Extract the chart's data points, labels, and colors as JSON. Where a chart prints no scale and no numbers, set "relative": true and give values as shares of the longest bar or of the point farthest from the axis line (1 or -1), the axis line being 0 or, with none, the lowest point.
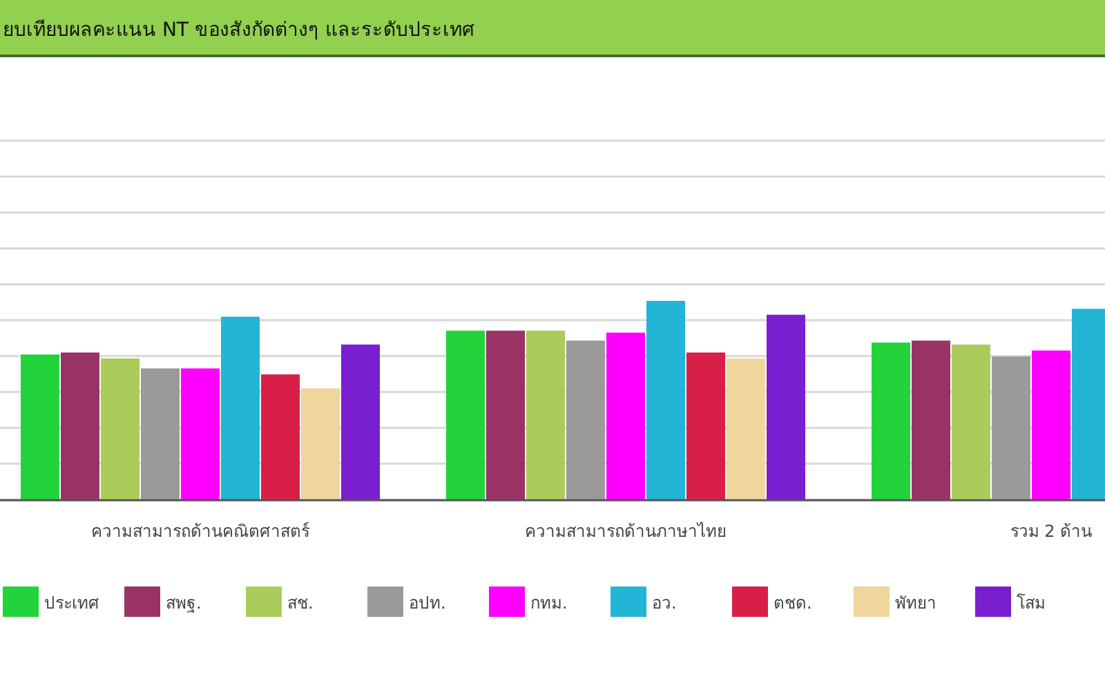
{
  "chart_data": {
    "type": "bar",
    "title": "ยบเทียบผลคะแนน NT ของสังกัดต่างๆ และระดับประเทศ",
    "relative": true,
    "grid": "y",
    "legend": "bottom",
    "categories": [
      "ความสามารถด้านคณิตศาสตร์",
      "ความสามารถด้านภาษาไทย",
      "รวม 2 ด้าน"
    ],
    "series": [
      {
        "name": "ประเทศ",
        "color": "#22d33c",
        "values": [
          0.73,
          0.85,
          0.79
        ]
      },
      {
        "name": "สพฐ.",
        "color": "#993366",
        "values": [
          0.74,
          0.85,
          0.8
        ]
      },
      {
        "name": "สช.",
        "color": "#aacc5a",
        "values": [
          0.71,
          0.85,
          0.78
        ]
      },
      {
        "name": "อปท.",
        "color": "#9a9a9a",
        "values": [
          0.66,
          0.8,
          0.72
        ]
      },
      {
        "name": "กทม.",
        "color": "#ff00ff",
        "values": [
          0.66,
          0.84,
          0.75
        ]
      },
      {
        "name": "อว.",
        "color": "#22b5d5",
        "values": [
          0.92,
          1,
          0.96
        ]
      },
      {
        "name": "ตชด.",
        "color": "#d81f48",
        "values": [
          0.63,
          0.74,
          null
        ]
      },
      {
        "name": "พัทยา",
        "color": "#efd69c",
        "values": [
          0.56,
          0.71,
          null
        ]
      },
      {
        "name": "โสม",
        "color": "#7a1fd0",
        "values": [
          0.78,
          0.93,
          null
        ]
      }
    ]
  }
}
